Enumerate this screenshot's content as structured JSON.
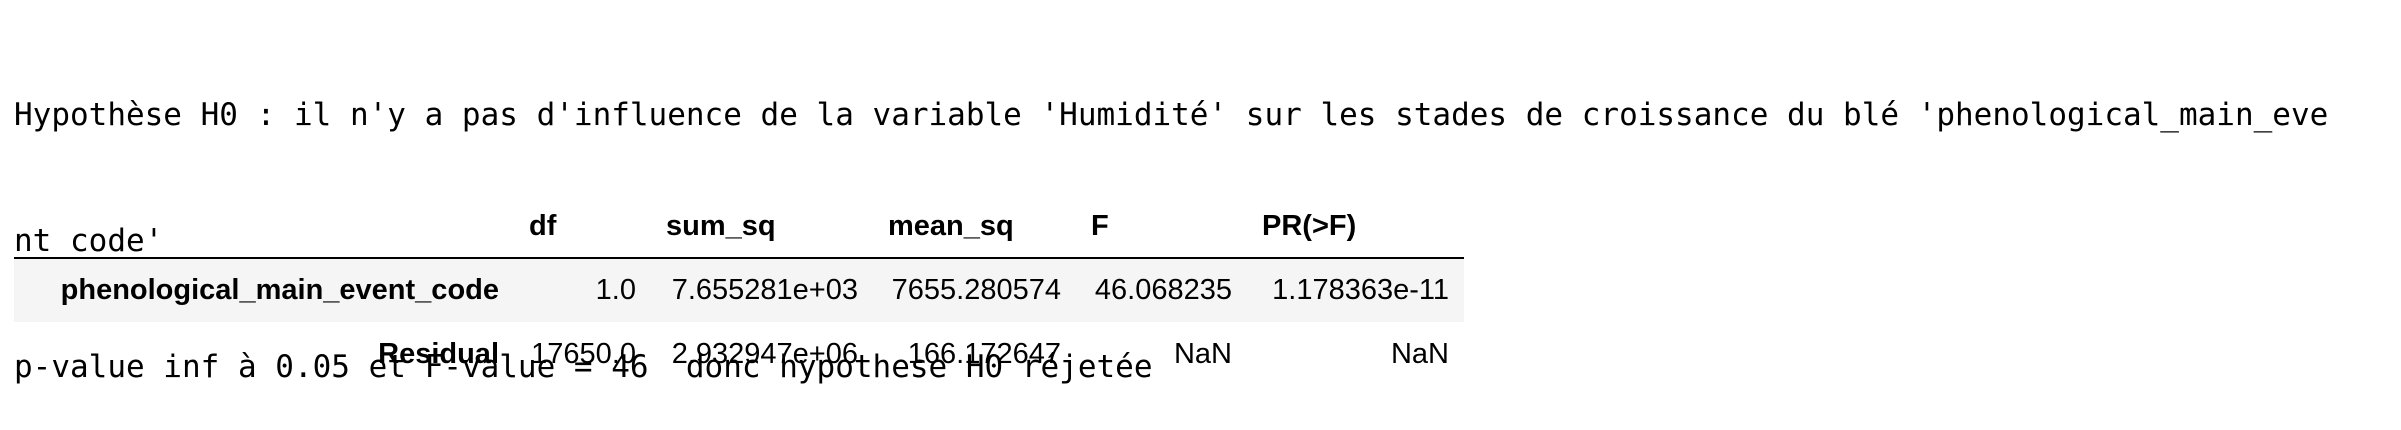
{
  "output": {
    "lines": [
      "Hypothèse H0 : il n'y a pas d'influence de la variable 'Humidité' sur les stades de croissance du blé 'phenological_main_eve",
      "nt_code'",
      "p-value inf à 0.05 et F-value = 46  donc hypothese H0 réjetée"
    ]
  },
  "anova_table": {
    "columns": [
      "",
      "df",
      "sum_sq",
      "mean_sq",
      "F",
      "PR(>F)"
    ],
    "rows": [
      {
        "index": "phenological_main_event_code",
        "df": "1.0",
        "sum_sq": "7.655281e+03",
        "mean_sq": "7655.280574",
        "F": "46.068235",
        "PR": "1.178363e-11"
      },
      {
        "index": "Residual",
        "df": "17650.0",
        "sum_sq": "2.932947e+06",
        "mean_sq": "166.172647",
        "F": "NaN",
        "PR": "NaN"
      }
    ]
  },
  "colors": {
    "text": "#000000",
    "background": "#ffffff",
    "row_stripe": "#f5f5f5",
    "header_rule": "#000000"
  }
}
